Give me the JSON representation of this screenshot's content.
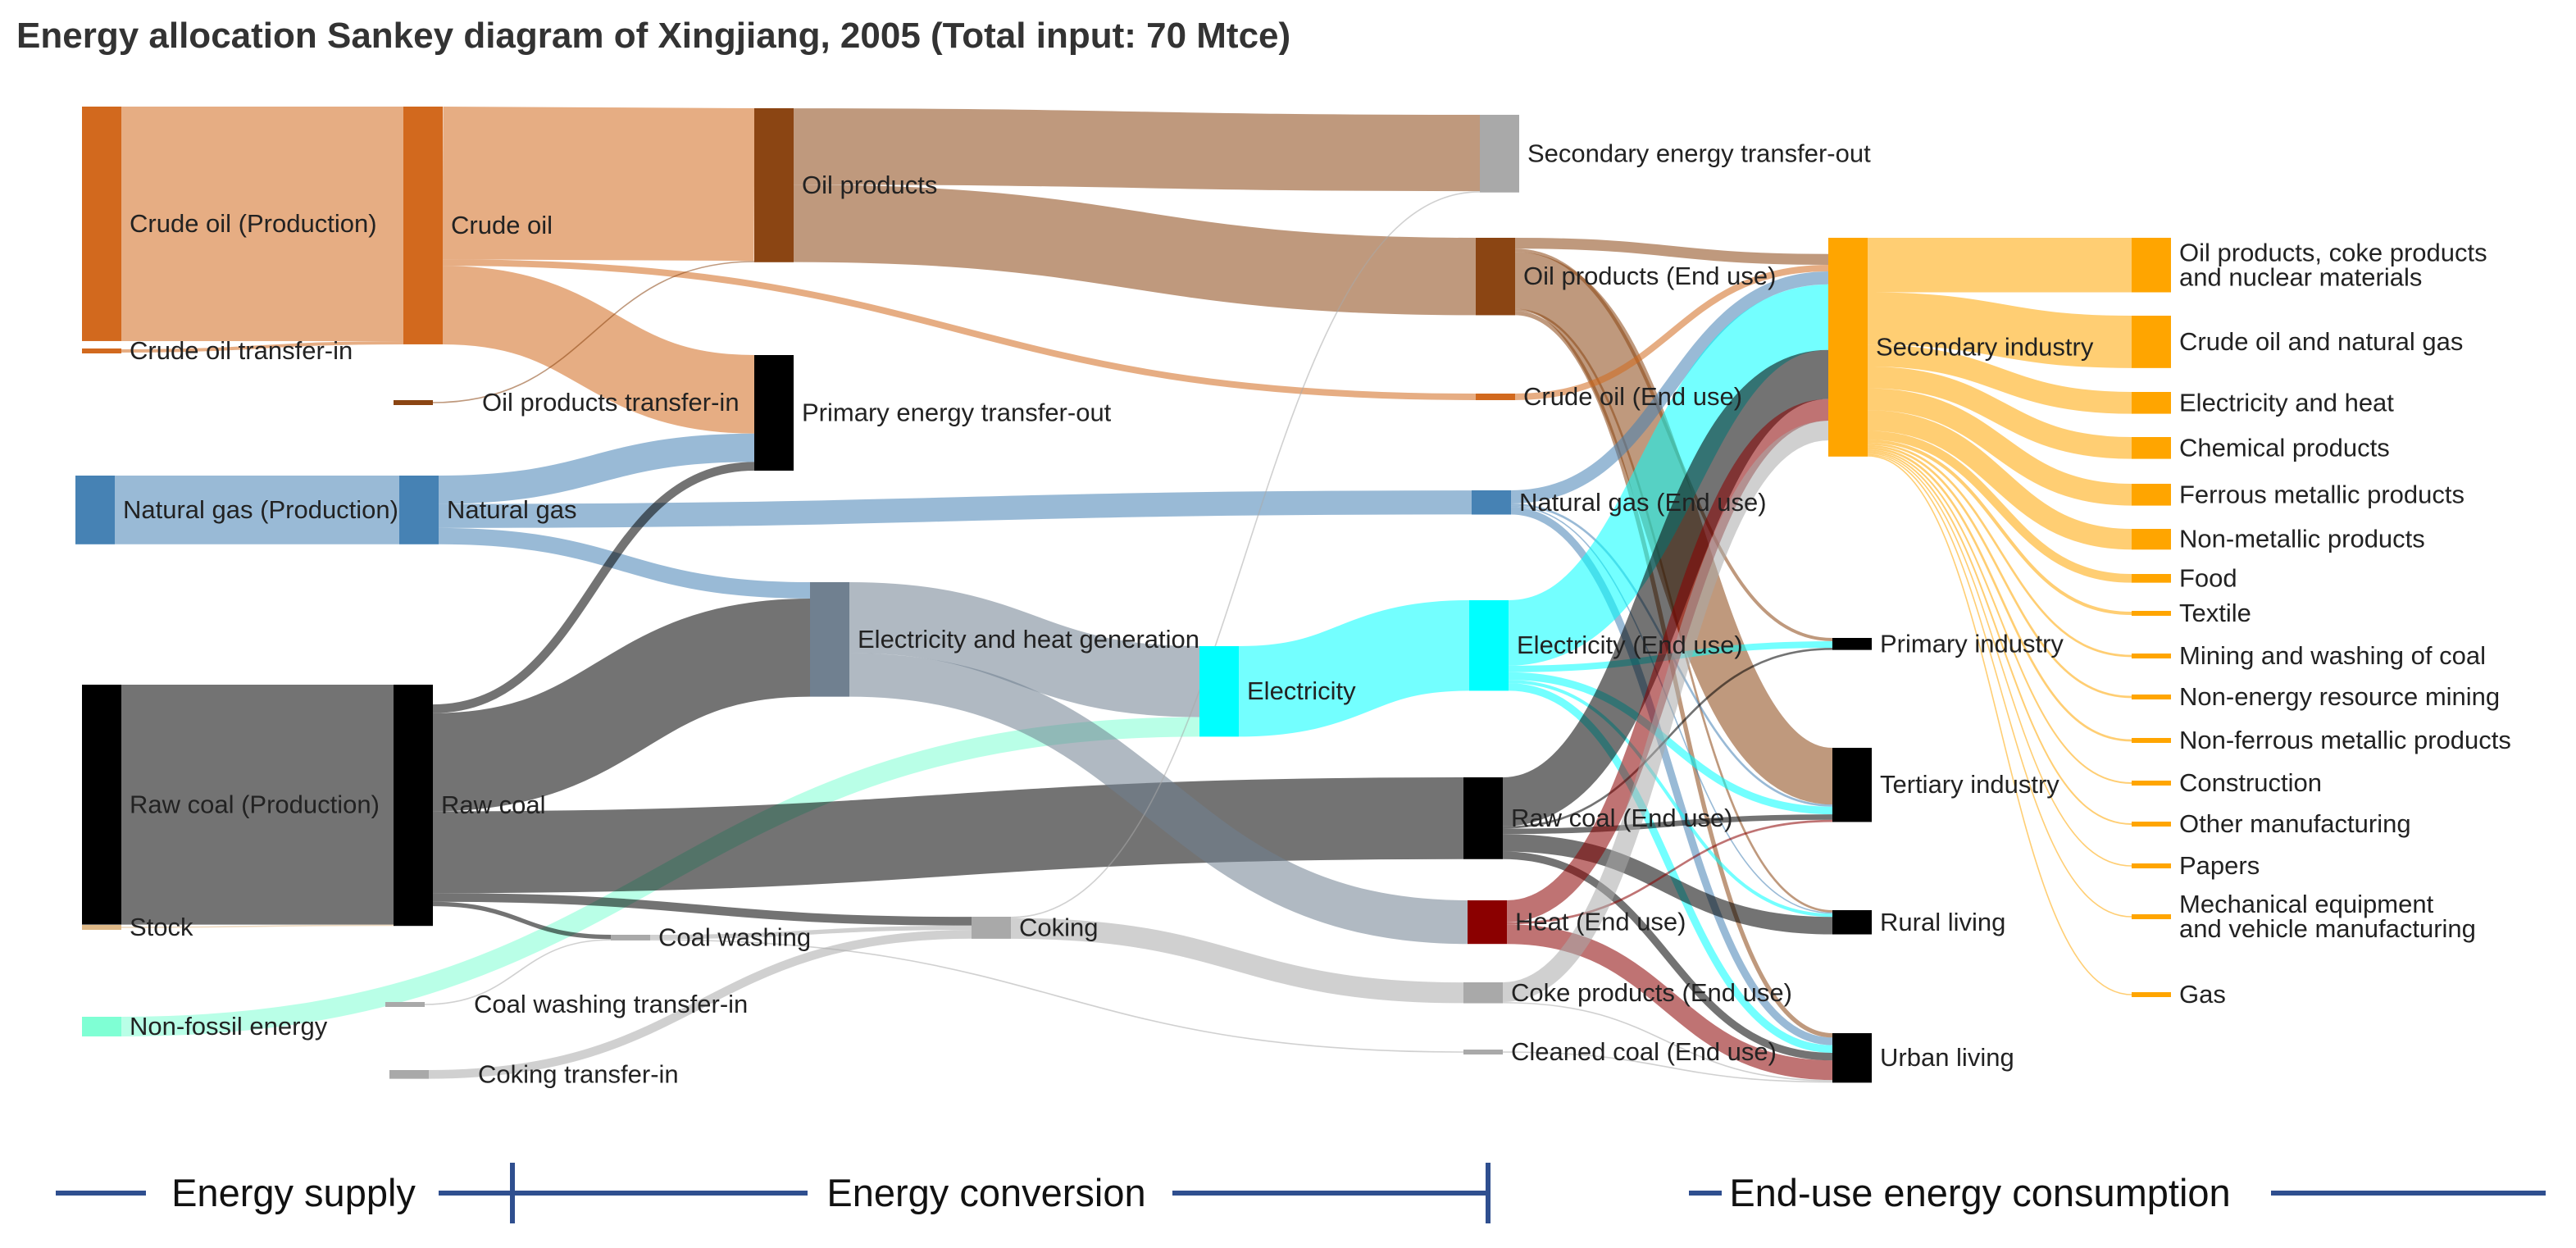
{
  "title": "Energy allocation Sankey diagram of Xingjiang, 2005 (Total input: 70 Mtce)",
  "colors": {
    "crude": "#d2691e",
    "oil_products": "#8b4513",
    "gas": "#4682b4",
    "coal": "#000000",
    "electricity": "#00ffff",
    "elec_heat_gen": "#708090",
    "heat": "#8b0000",
    "coke": "#a9a9a9",
    "nonfossil": "#7fffd4",
    "industry": "#ffa500",
    "stock": "#deb887",
    "secondary_out": "#a9a9a9",
    "axis": "#2f4f8f"
  },
  "nodes": [
    {
      "id": "crude_prod",
      "label": "Crude oil (Production)",
      "color": "crude"
    },
    {
      "id": "crude_in",
      "label": "Crude oil transfer-in",
      "color": "crude"
    },
    {
      "id": "gas_prod",
      "label": "Natural gas (Production)",
      "color": "gas"
    },
    {
      "id": "coal_prod",
      "label": "Raw coal (Production)",
      "color": "coal"
    },
    {
      "id": "stock",
      "label": "Stock",
      "color": "stock"
    },
    {
      "id": "nonfossil",
      "label": "Non-fossil energy",
      "color": "nonfossil"
    },
    {
      "id": "crude",
      "label": "Crude oil",
      "color": "crude"
    },
    {
      "id": "oilprod_in",
      "label": "Oil products transfer-in",
      "color": "oil_products"
    },
    {
      "id": "gas",
      "label": "Natural gas",
      "color": "gas"
    },
    {
      "id": "coal",
      "label": "Raw coal",
      "color": "coal"
    },
    {
      "id": "coalwash_in",
      "label": "Coal washing transfer-in",
      "color": "coke"
    },
    {
      "id": "coking_in",
      "label": "Coking transfer-in",
      "color": "coke"
    },
    {
      "id": "coalwash",
      "label": "Coal washing",
      "color": "coke"
    },
    {
      "id": "oilprod",
      "label": "Oil products",
      "color": "oil_products"
    },
    {
      "id": "primary_out",
      "label": "Primary energy transfer-out",
      "color": "coal"
    },
    {
      "id": "elec_gen",
      "label": "Electricity and heat generation",
      "color": "elec_heat_gen"
    },
    {
      "id": "coking",
      "label": "Coking",
      "color": "coke"
    },
    {
      "id": "secondary_out",
      "label": "Secondary energy transfer-out",
      "color": "secondary_out"
    },
    {
      "id": "electricity",
      "label": "Electricity",
      "color": "electricity"
    },
    {
      "id": "oil_end",
      "label": "Oil products (End use)",
      "color": "oil_products"
    },
    {
      "id": "crude_end",
      "label": "Crude oil (End use)",
      "color": "crude"
    },
    {
      "id": "gas_end",
      "label": "Natural gas (End use)",
      "color": "gas"
    },
    {
      "id": "elec_end",
      "label": "Electricity (End use)",
      "color": "electricity"
    },
    {
      "id": "coal_end",
      "label": "Raw coal (End use)",
      "color": "coal"
    },
    {
      "id": "heat_end",
      "label": "Heat (End use)",
      "color": "heat"
    },
    {
      "id": "coke_end",
      "label": "Coke products (End use)",
      "color": "coke"
    },
    {
      "id": "cleaned_end",
      "label": "Cleaned coal (End use)",
      "color": "coke"
    },
    {
      "id": "secondary_ind",
      "label": "Secondary industry",
      "color": "industry"
    },
    {
      "id": "primary_ind",
      "label": "Primary industry",
      "color": "coal"
    },
    {
      "id": "tertiary_ind",
      "label": "Tertiary industry",
      "color": "coal"
    },
    {
      "id": "rural",
      "label": "Rural living",
      "color": "coal"
    },
    {
      "id": "urban",
      "label": "Urban living",
      "color": "coal"
    },
    {
      "id": "s1",
      "label": "Oil products, coke products\nand nuclear materials",
      "color": "industry"
    },
    {
      "id": "s2",
      "label": "Crude oil and natural gas",
      "color": "industry"
    },
    {
      "id": "s3",
      "label": "Electricity and heat",
      "color": "industry"
    },
    {
      "id": "s4",
      "label": "Chemical products",
      "color": "industry"
    },
    {
      "id": "s5",
      "label": "Ferrous metallic products",
      "color": "industry"
    },
    {
      "id": "s6",
      "label": "Non-metallic products",
      "color": "industry"
    },
    {
      "id": "s7",
      "label": "Food",
      "color": "industry"
    },
    {
      "id": "s8",
      "label": "Textile",
      "color": "industry"
    },
    {
      "id": "s9",
      "label": "Mining and washing of coal",
      "color": "industry"
    },
    {
      "id": "s10",
      "label": "Non-energy resource mining",
      "color": "industry"
    },
    {
      "id": "s11",
      "label": "Non-ferrous metallic products",
      "color": "industry"
    },
    {
      "id": "s12",
      "label": "Construction",
      "color": "industry"
    },
    {
      "id": "s13",
      "label": "Other manufacturing",
      "color": "industry"
    },
    {
      "id": "s14",
      "label": "Papers",
      "color": "industry"
    },
    {
      "id": "s15",
      "label": "Mechanical equipment\nand vehicle manufacturing",
      "color": "industry"
    },
    {
      "id": "s16",
      "label": "Gas",
      "color": "industry"
    }
  ],
  "links": [
    {
      "source": "crude_prod",
      "target": "crude",
      "value": 21.5
    },
    {
      "source": "crude_in",
      "target": "crude",
      "value": 0.3
    },
    {
      "source": "gas_prod",
      "target": "gas",
      "value": 6.3
    },
    {
      "source": "coal_prod",
      "target": "coal",
      "value": 22.0
    },
    {
      "source": "stock",
      "target": "coal",
      "value": 0.1
    },
    {
      "source": "nonfossil",
      "target": "electricity",
      "value": 1.8
    },
    {
      "source": "crude",
      "target": "oilprod",
      "value": 14.0
    },
    {
      "source": "crude",
      "target": "primary_out",
      "value": 7.2
    },
    {
      "source": "crude",
      "target": "crude_end",
      "value": 0.6
    },
    {
      "source": "oilprod_in",
      "target": "oilprod",
      "value": 0.1
    },
    {
      "source": "gas",
      "target": "primary_out",
      "value": 2.6
    },
    {
      "source": "gas",
      "target": "gas_end",
      "value": 2.2
    },
    {
      "source": "gas",
      "target": "elec_gen",
      "value": 1.5
    },
    {
      "source": "coal",
      "target": "primary_out",
      "value": 0.8
    },
    {
      "source": "coal",
      "target": "elec_gen",
      "value": 9.0
    },
    {
      "source": "coal",
      "target": "coal_end",
      "value": 7.5
    },
    {
      "source": "coal",
      "target": "coking",
      "value": 0.8
    },
    {
      "source": "coal",
      "target": "coalwash",
      "value": 0.4
    },
    {
      "source": "coalwash_in",
      "target": "coalwash",
      "value": 0.05
    },
    {
      "source": "coking_in",
      "target": "coking",
      "value": 0.8
    },
    {
      "source": "coalwash",
      "target": "coking",
      "value": 0.4
    },
    {
      "source": "coalwash",
      "target": "cleaned_end",
      "value": 0.05
    },
    {
      "source": "oilprod",
      "target": "secondary_out",
      "value": 7.0
    },
    {
      "source": "oilprod",
      "target": "oil_end",
      "value": 7.1
    },
    {
      "source": "elec_gen",
      "target": "electricity",
      "value": 6.5
    },
    {
      "source": "elec_gen",
      "target": "heat_end",
      "value": 4.0
    },
    {
      "source": "coking",
      "target": "coke_end",
      "value": 1.9
    },
    {
      "source": "coking",
      "target": "secondary_out",
      "value": 0.05
    },
    {
      "source": "electricity",
      "target": "elec_end",
      "value": 8.3
    },
    {
      "source": "oil_end",
      "target": "secondary_ind",
      "value": 1.0
    },
    {
      "source": "oil_end",
      "target": "primary_ind",
      "value": 0.3
    },
    {
      "source": "oil_end",
      "target": "tertiary_ind",
      "value": 5.2
    },
    {
      "source": "oil_end",
      "target": "rural",
      "value": 0.2
    },
    {
      "source": "oil_end",
      "target": "urban",
      "value": 0.4
    },
    {
      "source": "crude_end",
      "target": "secondary_ind",
      "value": 0.6
    },
    {
      "source": "gas_end",
      "target": "secondary_ind",
      "value": 1.2
    },
    {
      "source": "gas_end",
      "target": "tertiary_ind",
      "value": 0.2
    },
    {
      "source": "gas_end",
      "target": "rural",
      "value": 0.1
    },
    {
      "source": "gas_end",
      "target": "urban",
      "value": 0.7
    },
    {
      "source": "elec_end",
      "target": "secondary_ind",
      "value": 6.0
    },
    {
      "source": "elec_end",
      "target": "primary_ind",
      "value": 0.6
    },
    {
      "source": "elec_end",
      "target": "tertiary_ind",
      "value": 0.7
    },
    {
      "source": "elec_end",
      "target": "rural",
      "value": 0.3
    },
    {
      "source": "elec_end",
      "target": "urban",
      "value": 0.7
    },
    {
      "source": "coal_end",
      "target": "secondary_ind",
      "value": 4.5
    },
    {
      "source": "coal_end",
      "target": "primary_ind",
      "value": 0.2
    },
    {
      "source": "coal_end",
      "target": "tertiary_ind",
      "value": 0.5
    },
    {
      "source": "coal_end",
      "target": "rural",
      "value": 1.6
    },
    {
      "source": "coal_end",
      "target": "urban",
      "value": 0.7
    },
    {
      "source": "heat_end",
      "target": "secondary_ind",
      "value": 2.0
    },
    {
      "source": "heat_end",
      "target": "tertiary_ind",
      "value": 0.2
    },
    {
      "source": "heat_end",
      "target": "urban",
      "value": 1.8
    },
    {
      "source": "coke_end",
      "target": "secondary_ind",
      "value": 1.8
    },
    {
      "source": "coke_end",
      "target": "urban",
      "value": 0.1
    },
    {
      "source": "cleaned_end",
      "target": "urban",
      "value": 0.05
    },
    {
      "source": "secondary_ind",
      "target": "s1",
      "value": 5.0
    },
    {
      "source": "secondary_ind",
      "target": "s2",
      "value": 4.8
    },
    {
      "source": "secondary_ind",
      "target": "s3",
      "value": 2.0
    },
    {
      "source": "secondary_ind",
      "target": "s4",
      "value": 2.0
    },
    {
      "source": "secondary_ind",
      "target": "s5",
      "value": 2.0
    },
    {
      "source": "secondary_ind",
      "target": "s6",
      "value": 1.9
    },
    {
      "source": "secondary_ind",
      "target": "s7",
      "value": 0.8
    },
    {
      "source": "secondary_ind",
      "target": "s8",
      "value": 0.3
    },
    {
      "source": "secondary_ind",
      "target": "s9",
      "value": 0.2
    },
    {
      "source": "secondary_ind",
      "target": "s10",
      "value": 0.2
    },
    {
      "source": "secondary_ind",
      "target": "s11",
      "value": 0.2
    },
    {
      "source": "secondary_ind",
      "target": "s12",
      "value": 0.15
    },
    {
      "source": "secondary_ind",
      "target": "s13",
      "value": 0.15
    },
    {
      "source": "secondary_ind",
      "target": "s14",
      "value": 0.1
    },
    {
      "source": "secondary_ind",
      "target": "s15",
      "value": 0.1
    },
    {
      "source": "secondary_ind",
      "target": "s16",
      "value": 0.1
    }
  ],
  "stages": [
    "Energy supply",
    "Energy conversion",
    "End-use energy consumption"
  ]
}
